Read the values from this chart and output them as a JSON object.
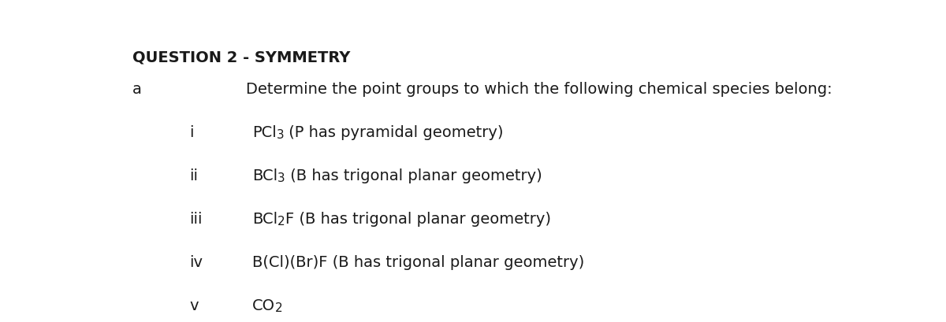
{
  "background_color": "#ffffff",
  "title": "QUESTION 2 - SYMMETRY",
  "title_fontsize": 14,
  "title_fontweight": "bold",
  "intro_text": "Determine the point groups to which the following chemical species belong:",
  "item_fontsize": 14,
  "text_color": "#1a1a1a",
  "font_family": "DejaVu Sans",
  "items": [
    {
      "numeral": "i",
      "parts": [
        {
          "text": "PCl",
          "subscript": false
        },
        {
          "text": "3",
          "subscript": true
        },
        {
          "text": " (P has pyramidal geometry)",
          "subscript": false
        }
      ]
    },
    {
      "numeral": "ii",
      "parts": [
        {
          "text": "BCl",
          "subscript": false
        },
        {
          "text": "3",
          "subscript": true
        },
        {
          "text": " (B has trigonal planar geometry)",
          "subscript": false
        }
      ]
    },
    {
      "numeral": "iii",
      "parts": [
        {
          "text": "BCl",
          "subscript": false
        },
        {
          "text": "2",
          "subscript": true
        },
        {
          "text": "F (B has trigonal planar geometry)",
          "subscript": false
        }
      ]
    },
    {
      "numeral": "iv",
      "parts": [
        {
          "text": "B(Cl)(Br)F (B has trigonal planar geometry)",
          "subscript": false
        }
      ]
    },
    {
      "numeral": "v",
      "parts": [
        {
          "text": "CO",
          "subscript": false
        },
        {
          "text": "2",
          "subscript": true
        }
      ]
    }
  ]
}
